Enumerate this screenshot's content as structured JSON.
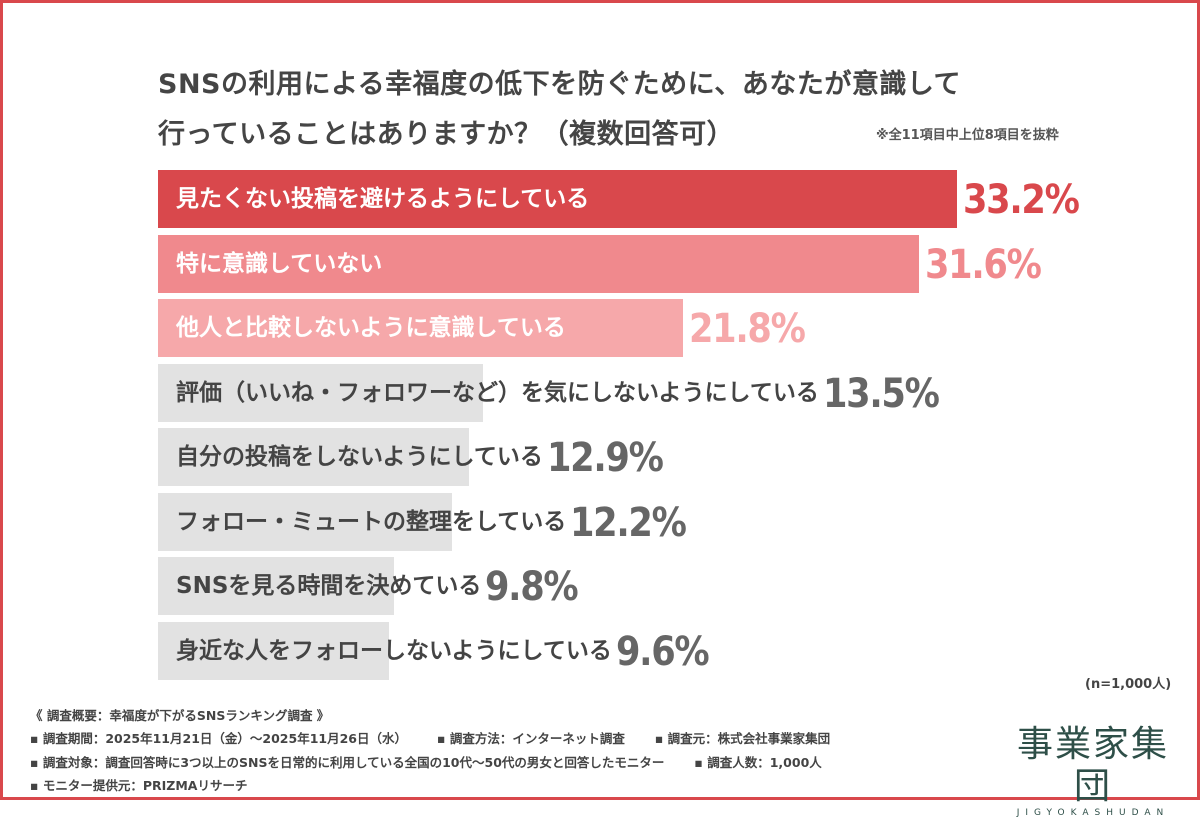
{
  "chart_data": {
    "type": "bar",
    "orientation": "horizontal",
    "title": "SNSの利用による幸福度の低下を防ぐために、あなたが意識して行っていることはありますか？（複数回答可）",
    "title_lines": [
      "SNSの利用による幸福度の低下を防ぐために、あなたが意識して",
      "行っていることはありますか？（複数回答可）"
    ],
    "note": "※全11項目中上位8項目を抜粋",
    "sample": "(n=1,000人)",
    "unit": "%",
    "categories": [
      "見たくない投稿を避けるようにしている",
      "特に意識していない",
      "他人と比較しないように意識している",
      "評価（いいね・フォロワーなど）を気にしないようにしている",
      "自分の投稿をしないようにしている",
      "フォロー・ミュートの整理をしている",
      "SNSを見る時間を決めている",
      "身近な人をフォローしないようにしている"
    ],
    "values": [
      33.2,
      31.6,
      21.8,
      13.5,
      12.9,
      12.2,
      9.8,
      9.6
    ],
    "value_labels": [
      "33.2%",
      "31.6%",
      "21.8%",
      "13.5%",
      "12.9%",
      "12.2%",
      "9.8%",
      "9.6%"
    ],
    "bar_colors": [
      "#d9484c",
      "#f0898d",
      "#f6a8aa",
      "#e2e2e2",
      "#e2e2e2",
      "#e2e2e2",
      "#e2e2e2",
      "#e2e2e2"
    ],
    "label_colors": [
      "#ffffff",
      "#ffffff",
      "#ffffff",
      "#444444",
      "#444444",
      "#444444",
      "#444444",
      "#444444"
    ],
    "value_colors": [
      "#d9484c",
      "#f0898d",
      "#f6a8aa",
      "#666666",
      "#666666",
      "#666666",
      "#666666",
      "#666666"
    ],
    "grid": false
  },
  "footer": {
    "heading": "《 調査概要：幸福度が下がるSNSランキング調査 》",
    "line1": [
      "▪ 調査期間：2025年11月21日（金）〜2025年11月26日（水）",
      "▪ 調査方法：インターネット調査",
      "▪ 調査元：株式会社事業家集団"
    ],
    "line2": [
      "▪ 調査対象：調査回答時に3つ以上のSNSを日常的に利用している全国の10代〜50代の男女と回答したモニター",
      "▪ 調査人数：1,000人"
    ],
    "line3": "▪ モニター提供元：PRIZMAリサーチ"
  },
  "logo": {
    "main": "事業家集団",
    "sub": "JIGYOKASHUDAN"
  },
  "colors": {
    "frame": "#d9484c",
    "logo": "#2e4f48"
  }
}
